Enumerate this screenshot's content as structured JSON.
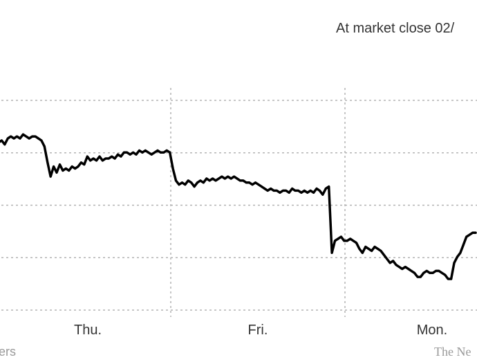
{
  "header": {
    "status": "At market close  02/"
  },
  "footer": {
    "source": "ers",
    "credit": "The Ne"
  },
  "colors": {
    "line": "#000000",
    "grid": "#b3b3b3",
    "axis_text": "#333333",
    "muted_text": "#999999"
  },
  "chart_data": {
    "type": "line",
    "title": "",
    "xlabel": "",
    "ylabel": "",
    "x_tick_labels": [
      "Thu.",
      "Fri.",
      "Mon."
    ],
    "y_gridlines": 5,
    "grid": true,
    "y_range": [
      0,
      100
    ],
    "series": [
      {
        "values": [
          78,
          79,
          77,
          80,
          81,
          80,
          81,
          80,
          82,
          81,
          80,
          81,
          81,
          80,
          79,
          76,
          68,
          61,
          66,
          63,
          67,
          64,
          65,
          64,
          66,
          65,
          66,
          68,
          67,
          71,
          69,
          70,
          69,
          71,
          69,
          70,
          70,
          71,
          70,
          72,
          71,
          73,
          73,
          72,
          73,
          72,
          74,
          73,
          74,
          73,
          72,
          73,
          74,
          73,
          73,
          74,
          73,
          65,
          59,
          57,
          58,
          57,
          59,
          58,
          56,
          58,
          59,
          58,
          60,
          59,
          60,
          59,
          60,
          61,
          60,
          61,
          60,
          61,
          60,
          59,
          59,
          58,
          58,
          57,
          58,
          57,
          56,
          55,
          54,
          55,
          54,
          54,
          53,
          54,
          54,
          53,
          55,
          54,
          54,
          53,
          54,
          53,
          54,
          53,
          55,
          54,
          52,
          55,
          56,
          23,
          29,
          30,
          31,
          29,
          29,
          30,
          29,
          28,
          25,
          23,
          26,
          25,
          24,
          26,
          25,
          24,
          22,
          20,
          18,
          19,
          17,
          16,
          15,
          16,
          15,
          14,
          13,
          11,
          11,
          13,
          14,
          13,
          13,
          14,
          14,
          13,
          12,
          10,
          10,
          18,
          21,
          23,
          27,
          31,
          32,
          33,
          33
        ]
      }
    ]
  }
}
